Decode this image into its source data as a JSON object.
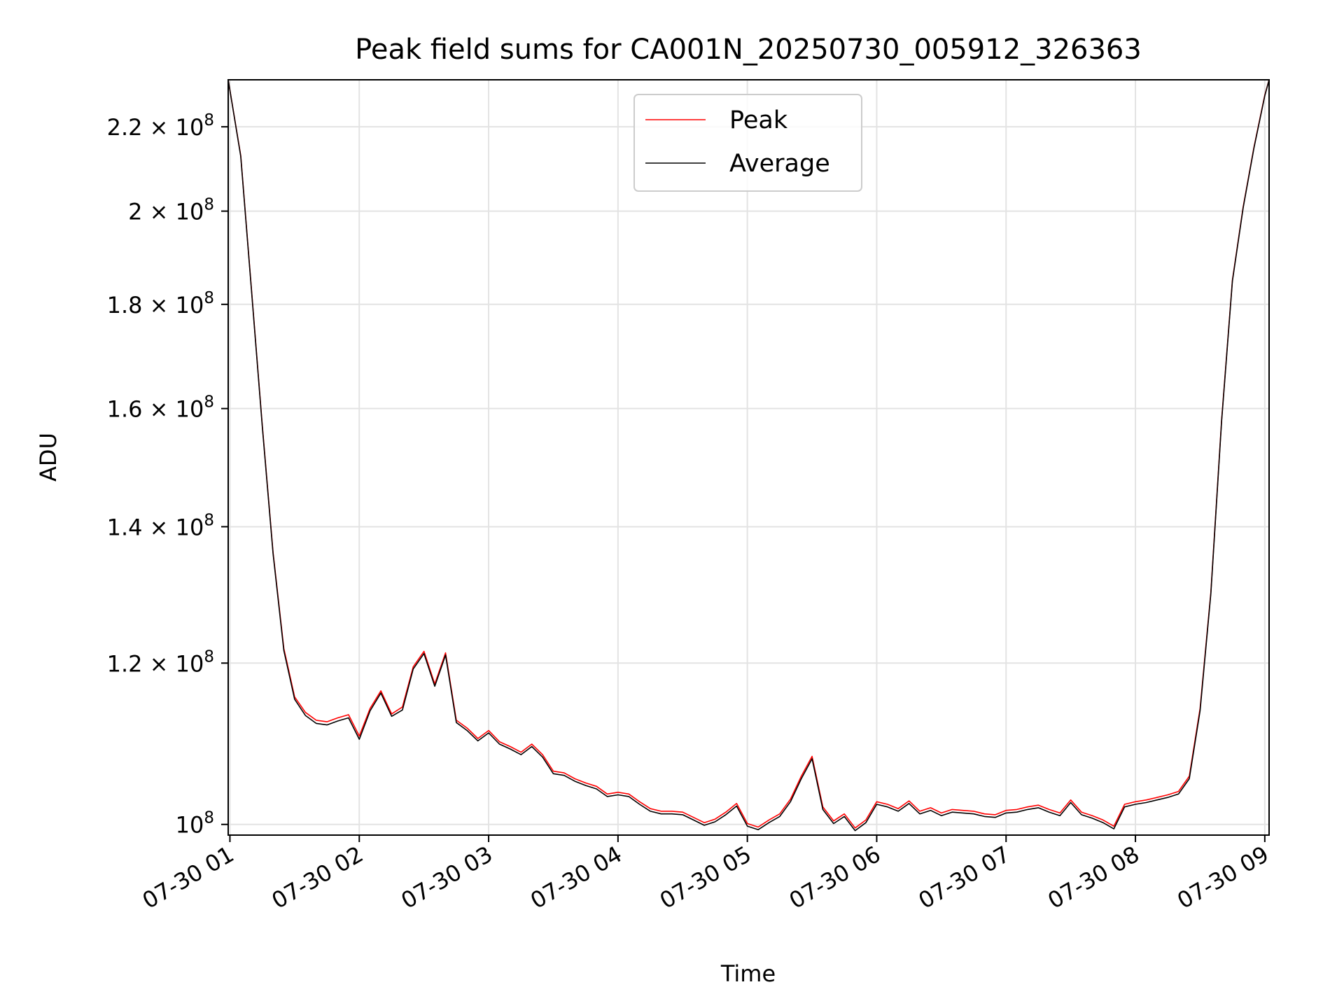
{
  "chart_data": {
    "type": "line",
    "title": "Peak field sums for CA001N_20250730_005912_326363",
    "xlabel": "Time",
    "ylabel": "ADU",
    "x_range": [
      "2025-07-30T00:59:12",
      "2025-07-30T09:02:00"
    ],
    "y_scale": "log",
    "ylim": [
      98800000,
      232000000
    ],
    "grid": true,
    "legend_position": "top-center",
    "x_ticks": [
      "07-30 01",
      "07-30 02",
      "07-30 03",
      "07-30 04",
      "07-30 05",
      "07-30 06",
      "07-30 07",
      "07-30 08",
      "07-30 09"
    ],
    "y_ticks": [
      {
        "value": 100000000,
        "mantissa": "",
        "exponent": "8"
      },
      {
        "value": 120000000,
        "mantissa": "1.2",
        "exponent": "8"
      },
      {
        "value": 140000000,
        "mantissa": "1.4",
        "exponent": "8"
      },
      {
        "value": 160000000,
        "mantissa": "1.6",
        "exponent": "8"
      },
      {
        "value": 180000000,
        "mantissa": "1.8",
        "exponent": "8"
      },
      {
        "value": 200000000,
        "mantissa": "2",
        "exponent": "8"
      },
      {
        "value": 220000000,
        "mantissa": "2.2",
        "exponent": "8"
      }
    ],
    "x": [
      "2025-07-30T00:59:12",
      "2025-07-30T01:05:00",
      "2025-07-30T01:10:00",
      "2025-07-30T01:15:00",
      "2025-07-30T01:20:00",
      "2025-07-30T01:25:00",
      "2025-07-30T01:30:00",
      "2025-07-30T01:35:00",
      "2025-07-30T01:40:00",
      "2025-07-30T01:45:00",
      "2025-07-30T01:50:00",
      "2025-07-30T01:55:00",
      "2025-07-30T02:00:00",
      "2025-07-30T02:05:00",
      "2025-07-30T02:10:00",
      "2025-07-30T02:15:00",
      "2025-07-30T02:20:00",
      "2025-07-30T02:25:00",
      "2025-07-30T02:30:00",
      "2025-07-30T02:35:00",
      "2025-07-30T02:40:00",
      "2025-07-30T02:45:00",
      "2025-07-30T02:50:00",
      "2025-07-30T02:55:00",
      "2025-07-30T03:00:00",
      "2025-07-30T03:05:00",
      "2025-07-30T03:10:00",
      "2025-07-30T03:15:00",
      "2025-07-30T03:20:00",
      "2025-07-30T03:25:00",
      "2025-07-30T03:30:00",
      "2025-07-30T03:35:00",
      "2025-07-30T03:40:00",
      "2025-07-30T03:45:00",
      "2025-07-30T03:50:00",
      "2025-07-30T03:55:00",
      "2025-07-30T04:00:00",
      "2025-07-30T04:05:00",
      "2025-07-30T04:10:00",
      "2025-07-30T04:15:00",
      "2025-07-30T04:20:00",
      "2025-07-30T04:25:00",
      "2025-07-30T04:30:00",
      "2025-07-30T04:35:00",
      "2025-07-30T04:40:00",
      "2025-07-30T04:45:00",
      "2025-07-30T04:50:00",
      "2025-07-30T04:55:00",
      "2025-07-30T05:00:00",
      "2025-07-30T05:05:00",
      "2025-07-30T05:10:00",
      "2025-07-30T05:15:00",
      "2025-07-30T05:20:00",
      "2025-07-30T05:25:00",
      "2025-07-30T05:30:00",
      "2025-07-30T05:35:00",
      "2025-07-30T05:40:00",
      "2025-07-30T05:45:00",
      "2025-07-30T05:50:00",
      "2025-07-30T05:55:00",
      "2025-07-30T06:00:00",
      "2025-07-30T06:05:00",
      "2025-07-30T06:10:00",
      "2025-07-30T06:15:00",
      "2025-07-30T06:20:00",
      "2025-07-30T06:25:00",
      "2025-07-30T06:30:00",
      "2025-07-30T06:35:00",
      "2025-07-30T06:40:00",
      "2025-07-30T06:45:00",
      "2025-07-30T06:50:00",
      "2025-07-30T06:55:00",
      "2025-07-30T07:00:00",
      "2025-07-30T07:05:00",
      "2025-07-30T07:10:00",
      "2025-07-30T07:15:00",
      "2025-07-30T07:20:00",
      "2025-07-30T07:25:00",
      "2025-07-30T07:30:00",
      "2025-07-30T07:35:00",
      "2025-07-30T07:40:00",
      "2025-07-30T07:45:00",
      "2025-07-30T07:50:00",
      "2025-07-30T07:55:00",
      "2025-07-30T08:00:00",
      "2025-07-30T08:05:00",
      "2025-07-30T08:10:00",
      "2025-07-30T08:15:00",
      "2025-07-30T08:20:00",
      "2025-07-30T08:25:00",
      "2025-07-30T08:30:00",
      "2025-07-30T08:35:00",
      "2025-07-30T08:40:00",
      "2025-07-30T08:45:00",
      "2025-07-30T08:50:00",
      "2025-07-30T08:55:00",
      "2025-07-30T09:00:00",
      "2025-07-30T09:02:00"
    ],
    "series": [
      {
        "name": "Peak",
        "color": "#ff0000",
        "values": [
          232000000,
          213000000,
          183000000,
          157000000,
          136000000,
          122000000,
          115500000,
          113500000,
          112500000,
          112300000,
          112800000,
          113200000,
          110500000,
          114000000,
          116300000,
          113300000,
          114200000,
          119500000,
          121600000,
          117200000,
          121400000,
          112500000,
          111500000,
          110200000,
          111200000,
          109800000,
          109200000,
          108500000,
          109500000,
          108200000,
          106200000,
          106000000,
          105300000,
          104800000,
          104400000,
          103500000,
          103700000,
          103500000,
          102600000,
          101800000,
          101500000,
          101500000,
          101400000,
          100800000,
          100200000,
          100600000,
          101400000,
          102400000,
          100100000,
          99700000,
          100500000,
          101200000,
          102900000,
          105600000,
          108000000,
          102000000,
          100400000,
          101200000,
          99600000,
          100500000,
          102600000,
          102300000,
          101800000,
          102700000,
          101500000,
          101900000,
          101300000,
          101700000,
          101600000,
          101500000,
          101200000,
          101100000,
          101600000,
          101700000,
          102000000,
          102200000,
          101700000,
          101300000,
          102800000,
          101400000,
          101000000,
          100500000,
          99800000,
          102300000,
          102600000,
          102800000,
          103100000,
          103400000,
          103800000,
          105600000,
          114000000,
          130000000,
          158000000,
          185000000,
          201000000,
          215000000,
          228000000,
          232000000
        ]
      },
      {
        "name": "Average",
        "color": "#000000",
        "values": [
          232000000,
          212800000,
          182800000,
          156800000,
          135800000,
          121700000,
          115200000,
          113100000,
          112100000,
          111900000,
          112400000,
          112800000,
          110100000,
          113700000,
          116000000,
          113000000,
          113800000,
          119200000,
          121300000,
          116900000,
          121100000,
          112200000,
          111200000,
          109900000,
          110900000,
          109500000,
          108900000,
          108200000,
          109200000,
          107900000,
          105900000,
          105700000,
          105000000,
          104500000,
          104100000,
          103200000,
          103400000,
          103200000,
          102300000,
          101500000,
          101200000,
          101200000,
          101100000,
          100500000,
          99900000,
          100300000,
          101100000,
          102100000,
          99800000,
          99400000,
          100200000,
          100900000,
          102600000,
          105300000,
          107700000,
          101700000,
          100100000,
          100900000,
          99300000,
          100200000,
          102300000,
          102000000,
          101500000,
          102400000,
          101200000,
          101600000,
          101000000,
          101400000,
          101300000,
          101200000,
          100900000,
          100800000,
          101300000,
          101400000,
          101700000,
          101900000,
          101400000,
          101000000,
          102500000,
          101100000,
          100700000,
          100200000,
          99500000,
          102000000,
          102300000,
          102500000,
          102800000,
          103100000,
          103500000,
          105300000,
          113700000,
          129800000,
          157800000,
          184800000,
          200800000,
          214800000,
          227800000,
          232000000
        ]
      }
    ]
  }
}
